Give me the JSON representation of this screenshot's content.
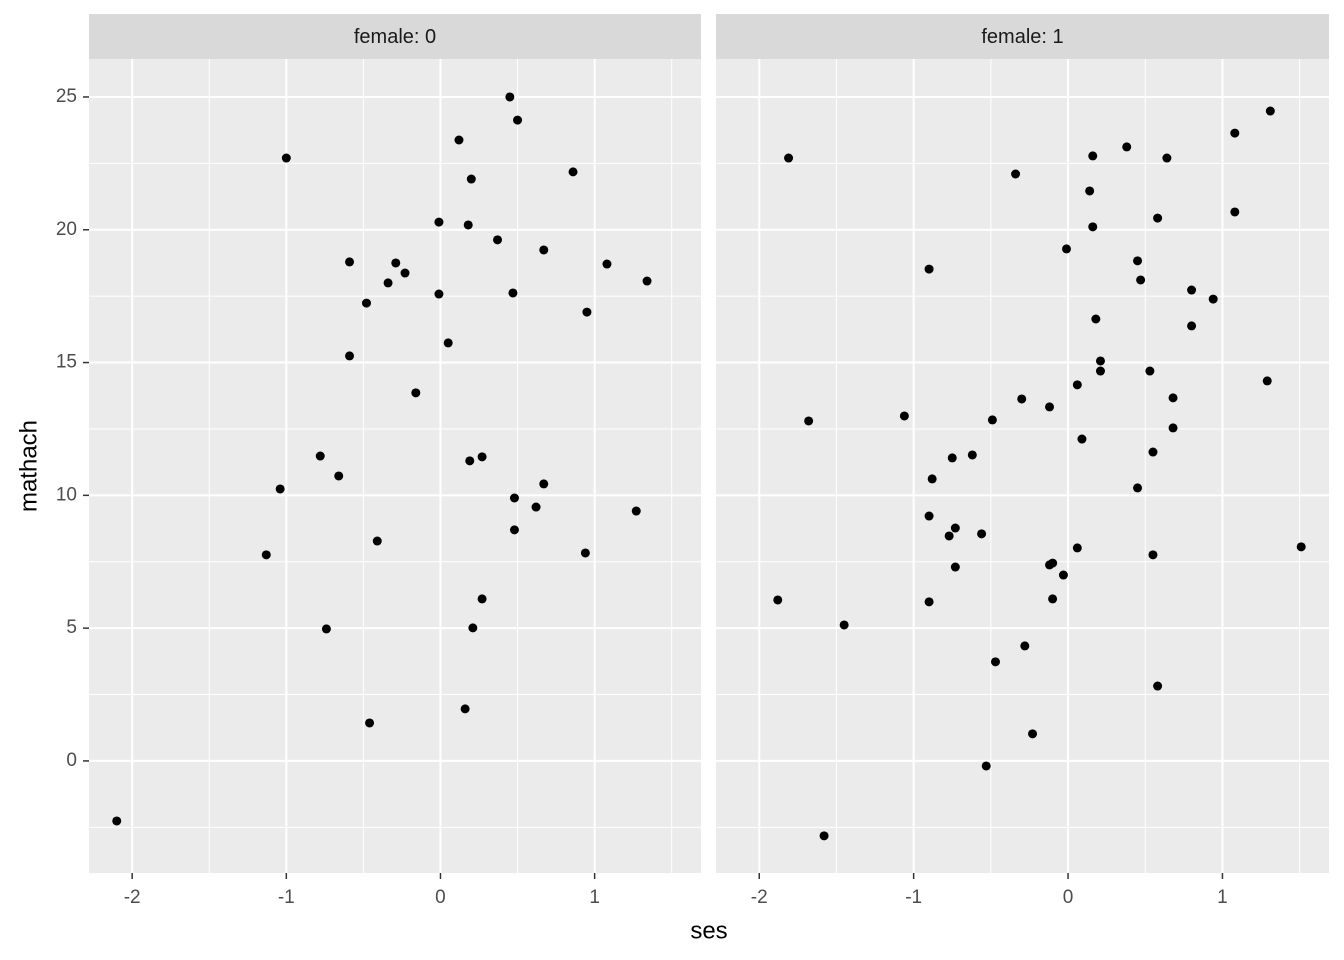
{
  "chart_data": {
    "type": "scatter",
    "xlabel": "ses",
    "ylabel": "mathach",
    "xlim": [
      -2.28,
      1.69
    ],
    "ylim": [
      -4.22,
      26.43
    ],
    "xticks": [
      -2,
      -1,
      0,
      1
    ],
    "yticks": [
      0,
      5,
      10,
      15,
      20,
      25
    ],
    "grid": true,
    "color": "#000000",
    "panels": [
      {
        "title": "female: 0",
        "x": [
          -2.1,
          -1.0,
          -1.13,
          -1.04,
          -0.78,
          -0.66,
          -0.74,
          -0.59,
          -0.59,
          -0.48,
          -0.46,
          -0.41,
          -0.34,
          -0.29,
          -0.23,
          -0.16,
          -0.01,
          -0.01,
          0.05,
          0.12,
          0.18,
          0.2,
          0.19,
          0.27,
          0.21,
          0.27,
          0.16,
          0.37,
          0.45,
          0.5,
          0.47,
          0.48,
          0.48,
          0.62,
          0.67,
          0.67,
          0.86,
          0.95,
          0.94,
          1.08,
          1.27,
          1.34
        ],
        "y": [
          -2.26,
          22.7,
          7.76,
          10.24,
          11.48,
          10.73,
          4.97,
          18.79,
          15.25,
          17.24,
          1.43,
          8.28,
          18.0,
          18.75,
          18.37,
          13.86,
          20.29,
          17.58,
          15.74,
          23.38,
          20.18,
          21.91,
          11.3,
          11.45,
          5.01,
          6.1,
          1.96,
          19.62,
          25.0,
          24.13,
          17.62,
          9.9,
          8.7,
          9.56,
          10.43,
          19.24,
          22.18,
          16.9,
          7.83,
          18.71,
          9.41,
          18.07
        ]
      },
      {
        "title": "female: 1",
        "x": [
          -1.88,
          -1.81,
          -1.68,
          -1.58,
          -1.45,
          -1.06,
          -0.9,
          -0.88,
          -0.9,
          -0.9,
          -0.77,
          -0.75,
          -0.73,
          -0.73,
          -0.62,
          -0.56,
          -0.53,
          -0.49,
          -0.47,
          -0.34,
          -0.3,
          -0.28,
          -0.23,
          -0.12,
          -0.12,
          -0.1,
          -0.1,
          -0.03,
          -0.01,
          0.06,
          0.06,
          0.09,
          0.14,
          0.16,
          0.16,
          0.18,
          0.21,
          0.21,
          0.38,
          0.45,
          0.47,
          0.45,
          0.53,
          0.55,
          0.55,
          0.58,
          0.58,
          0.64,
          0.68,
          0.68,
          0.8,
          0.8,
          0.94,
          1.08,
          1.08,
          1.29,
          1.31,
          1.51
        ],
        "y": [
          6.06,
          22.7,
          12.8,
          -2.82,
          5.12,
          12.99,
          18.52,
          10.62,
          9.22,
          5.99,
          8.47,
          11.41,
          8.77,
          7.3,
          11.52,
          8.55,
          -0.19,
          12.84,
          3.73,
          22.1,
          13.63,
          4.33,
          1.02,
          13.33,
          7.38,
          7.45,
          6.1,
          7.0,
          19.28,
          14.16,
          8.02,
          12.12,
          21.46,
          22.78,
          20.11,
          16.64,
          15.06,
          14.68,
          23.12,
          18.83,
          18.11,
          10.28,
          14.68,
          11.63,
          7.76,
          20.44,
          2.82,
          22.7,
          13.67,
          12.54,
          17.73,
          16.38,
          17.39,
          23.64,
          20.67,
          14.31,
          24.47,
          8.06
        ]
      }
    ]
  }
}
